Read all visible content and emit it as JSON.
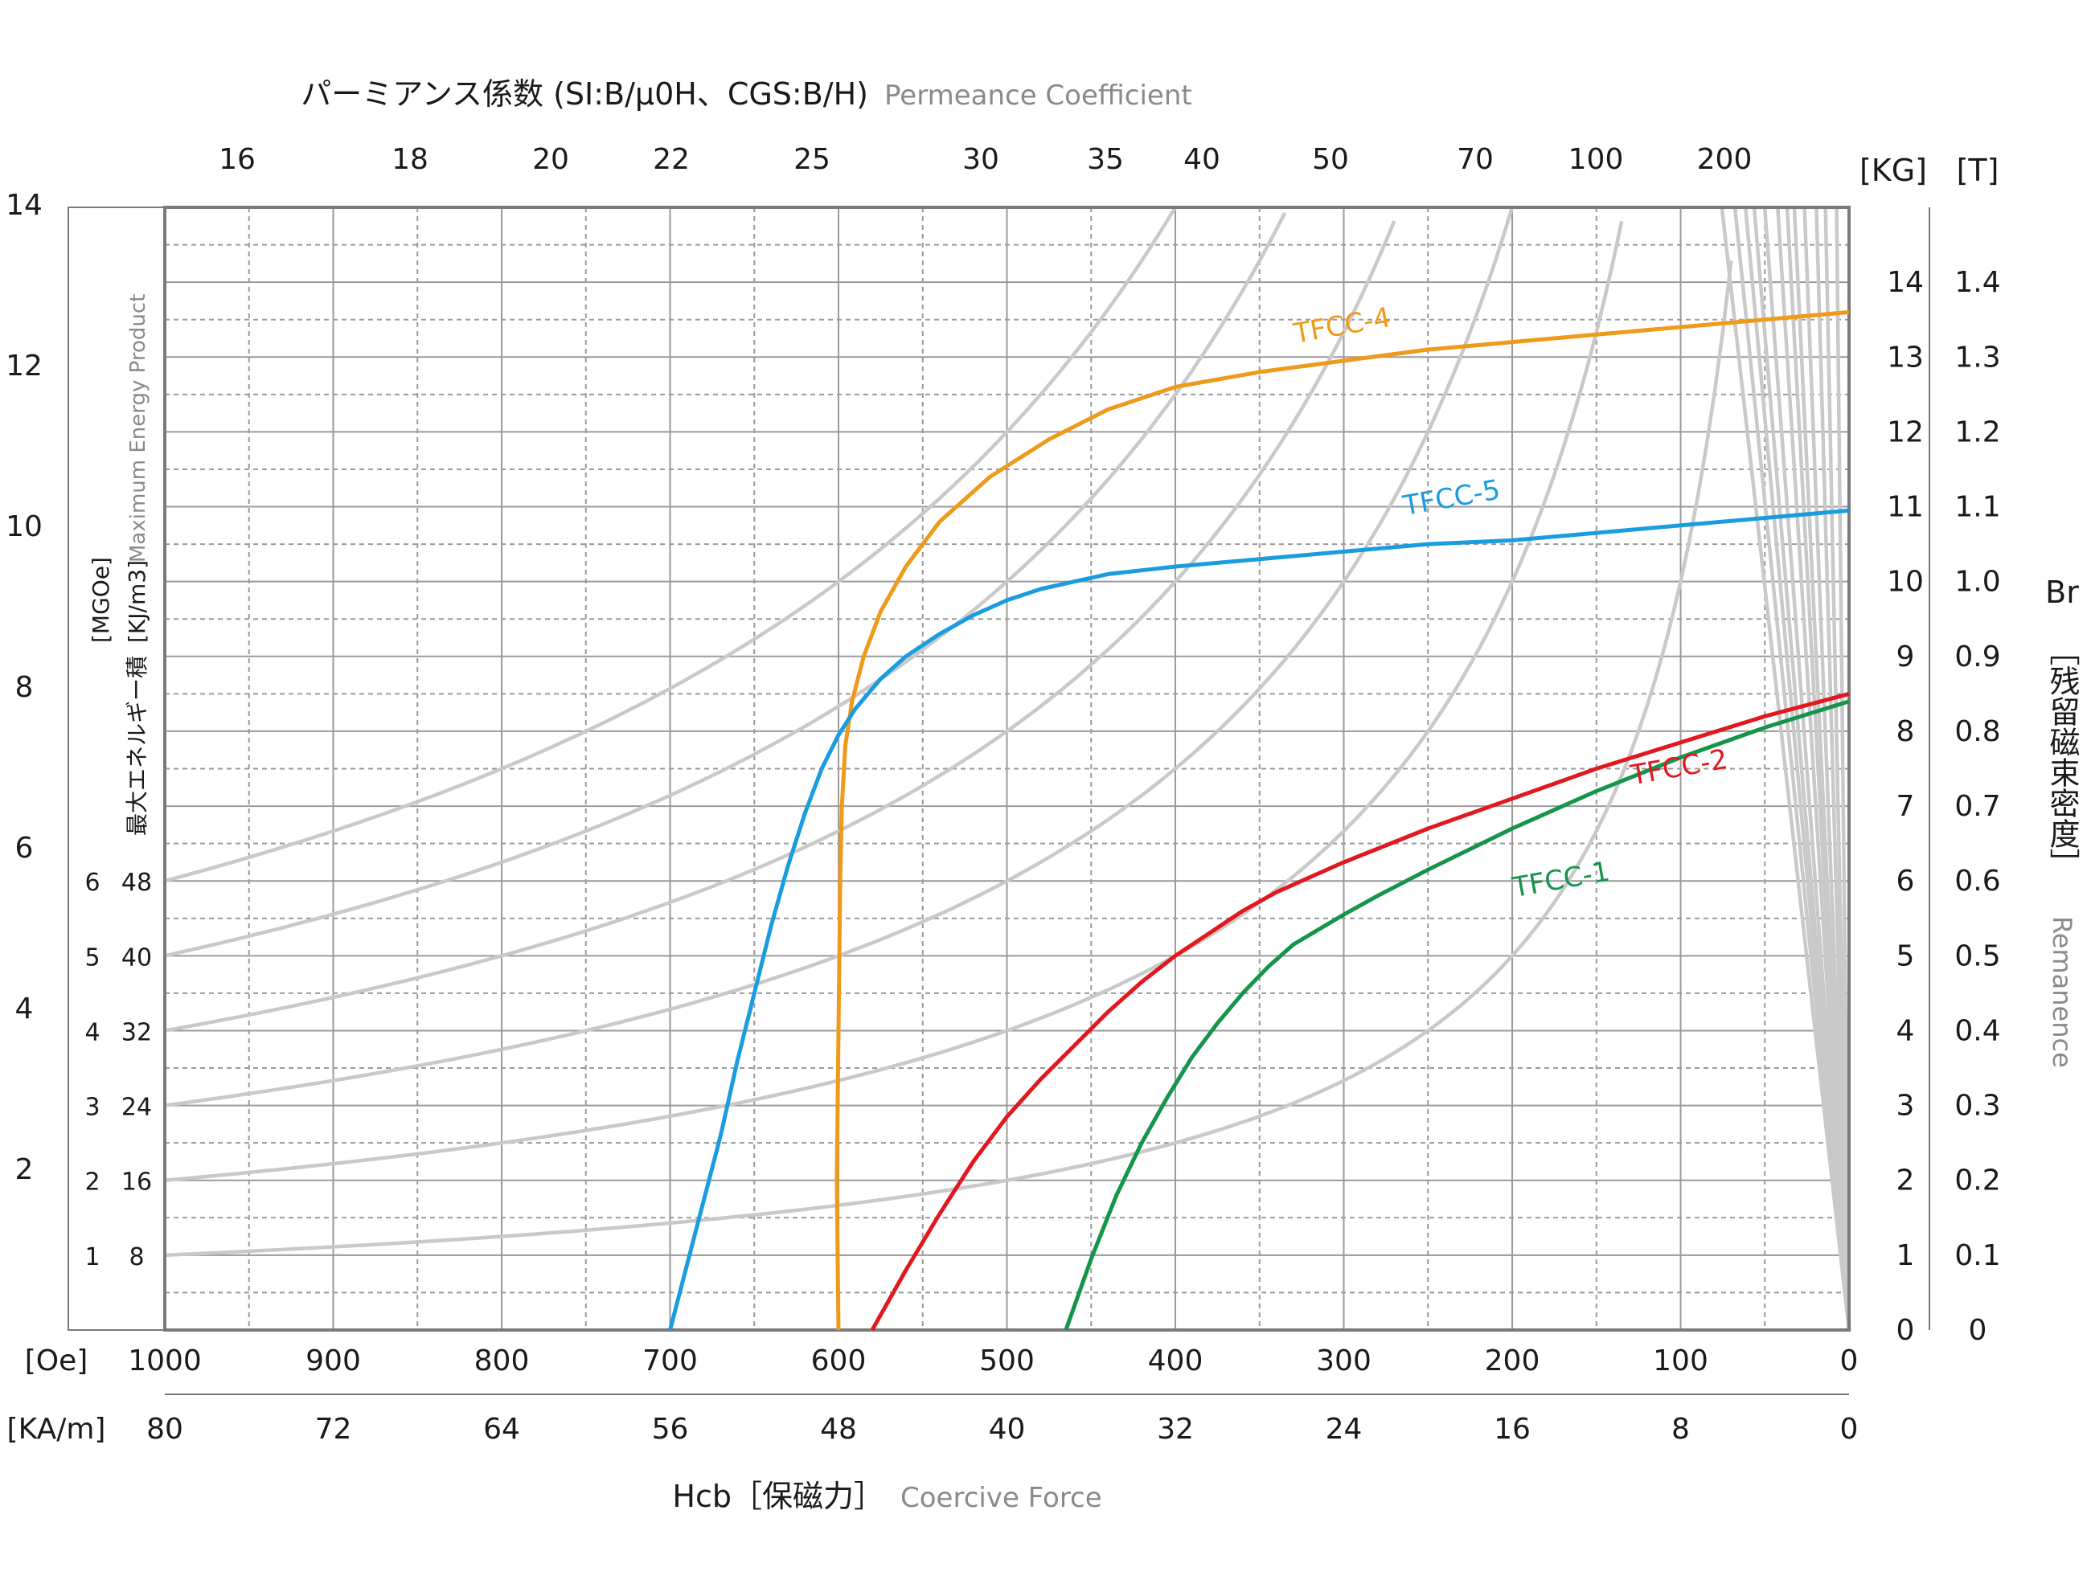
{
  "chart_data": {
    "type": "line",
    "top_title": {
      "main": "パーミアンス係数 (SI:B/μ0H、CGS:B/H)",
      "sub": "Permeance Coefficient"
    },
    "bottom_title": {
      "main": "Hcb［保磁力］",
      "sub": "Coercive Force"
    },
    "right_title": {
      "main_top": "Br",
      "main_vertical": "［残留磁束密度］",
      "sub": "Remanence"
    },
    "left_title": {
      "unit_mgoe": "[MGOe]",
      "unit_kjm3": "[KJ/m3]",
      "main": "最大エネルギー積",
      "sub": "Maximum Energy Product"
    },
    "x_oe_unit": "[Oe]",
    "x_kam_unit": "[KA/m]",
    "kg_unit": "[KG]",
    "t_unit": "[T]",
    "x_oe_ticks": [
      "1000",
      "900",
      "800",
      "700",
      "600",
      "500",
      "400",
      "300",
      "200",
      "100",
      "0"
    ],
    "x_kam_ticks": [
      "80",
      "72",
      "64",
      "56",
      "48",
      "40",
      "32",
      "24",
      "16",
      "8",
      "0"
    ],
    "kg_ticks": [
      "0",
      "1",
      "2",
      "3",
      "4",
      "5",
      "6",
      "7",
      "8",
      "9",
      "10",
      "11",
      "12",
      "13",
      "14"
    ],
    "t_ticks": [
      "0",
      "0.1",
      "0.2",
      "0.3",
      "0.4",
      "0.5",
      "0.6",
      "0.7",
      "0.8",
      "0.9",
      "1.0",
      "1.1",
      "1.2",
      "1.3",
      "1.4"
    ],
    "left_outer_ticks": [
      "2",
      "4",
      "6",
      "8",
      "10",
      "12",
      "14"
    ],
    "bh_mgoe_ticks": [
      "1",
      "2",
      "3",
      "4",
      "5",
      "6"
    ],
    "bh_kjm3_ticks": [
      "8",
      "16",
      "24",
      "32",
      "40",
      "48"
    ],
    "permeance_ticks": [
      "16",
      "18",
      "20",
      "22",
      "25",
      "30",
      "35",
      "40",
      "50",
      "70",
      "100",
      "200"
    ],
    "xlim_oe": [
      1000,
      0
    ],
    "ylim_kg": [
      0,
      15
    ],
    "grid": true,
    "bh_product_mgoe": [
      1,
      2,
      3,
      4,
      5,
      6
    ],
    "series": [
      {
        "name": "TFCC-4",
        "color": "#ee9a1b",
        "x": [
          600,
          601,
          600,
          599,
          598,
          596,
          592,
          585,
          575,
          560,
          540,
          510,
          475,
          440,
          400,
          350,
          300,
          250,
          200,
          150,
          100,
          50,
          0
        ],
        "y": [
          0,
          2,
          4,
          6,
          7,
          7.8,
          8.4,
          9.0,
          9.6,
          10.2,
          10.8,
          11.4,
          11.9,
          12.3,
          12.6,
          12.8,
          12.95,
          13.1,
          13.2,
          13.3,
          13.4,
          13.5,
          13.6
        ]
      },
      {
        "name": "TFCC-5",
        "color": "#1a9ce0",
        "x": [
          700,
          685,
          670,
          660,
          650,
          640,
          630,
          620,
          610,
          600,
          590,
          575,
          560,
          540,
          520,
          500,
          480,
          460,
          440,
          420,
          400,
          350,
          300,
          250,
          200,
          150,
          100,
          50,
          0
        ],
        "y": [
          0,
          1.3,
          2.6,
          3.6,
          4.5,
          5.4,
          6.2,
          6.9,
          7.5,
          7.95,
          8.3,
          8.7,
          9.0,
          9.3,
          9.55,
          9.75,
          9.9,
          10.0,
          10.1,
          10.15,
          10.2,
          10.3,
          10.4,
          10.5,
          10.55,
          10.65,
          10.75,
          10.85,
          10.95
        ]
      },
      {
        "name": "TFCC-2",
        "color": "#e2181f",
        "x": [
          580,
          560,
          540,
          520,
          500,
          480,
          460,
          440,
          420,
          400,
          380,
          360,
          340,
          320,
          300,
          250,
          200,
          150,
          100,
          50,
          0
        ],
        "y": [
          0,
          0.8,
          1.55,
          2.25,
          2.85,
          3.35,
          3.8,
          4.25,
          4.65,
          5.0,
          5.3,
          5.6,
          5.85,
          6.05,
          6.25,
          6.7,
          7.1,
          7.5,
          7.85,
          8.2,
          8.5
        ]
      },
      {
        "name": "TFCC-1",
        "color": "#15944a",
        "x": [
          465,
          450,
          435,
          420,
          405,
          390,
          375,
          360,
          345,
          330,
          315,
          300,
          280,
          250,
          200,
          150,
          100,
          50,
          0
        ],
        "y": [
          0,
          0.95,
          1.8,
          2.5,
          3.1,
          3.65,
          4.1,
          4.5,
          4.85,
          5.15,
          5.35,
          5.55,
          5.8,
          6.15,
          6.7,
          7.2,
          7.65,
          8.05,
          8.4
        ]
      }
    ],
    "annotations": [
      {
        "text": "TFCC-4",
        "x": 300,
        "y": 13.3,
        "color": "#ee9a1b"
      },
      {
        "text": "TFCC-5",
        "x": 235,
        "y": 11.0,
        "color": "#1a9ce0"
      },
      {
        "text": "TFCC-2",
        "x": 100,
        "y": 7.4,
        "color": "#e2181f"
      },
      {
        "text": "TFCC-1",
        "x": 170,
        "y": 5.9,
        "color": "#15944a"
      }
    ]
  }
}
